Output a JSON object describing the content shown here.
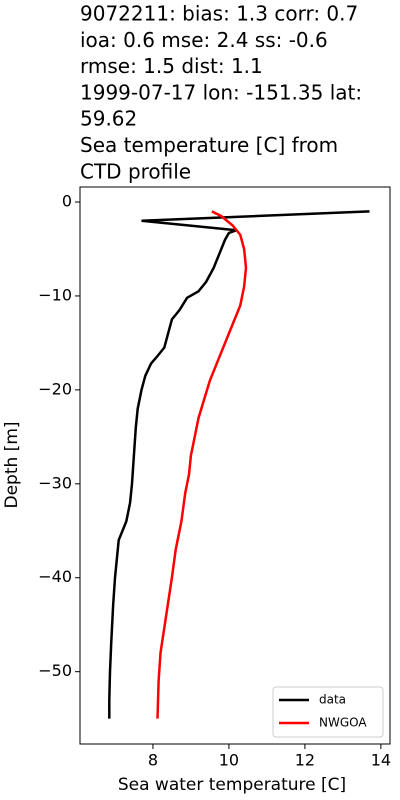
{
  "chart_data": {
    "type": "line",
    "title": [
      "9072211: bias: 1.3  corr: 0.7",
      " ioa: 0.6  mse: 2.4  ss: -0.6",
      "rmse: 1.5  dist: 1.1",
      "1999-07-17 lon: -151.35 lat:",
      "59.62",
      "Sea temperature [C] from",
      "CTD profile"
    ],
    "xlabel": "Sea water temperature [C]",
    "ylabel": "Depth [m]",
    "xlim": [
      6.08,
      14.24
    ],
    "ylim": [
      -57.7,
      1.6
    ],
    "xticks": [
      8,
      10,
      12,
      14
    ],
    "yticks": [
      {
        "value": 0,
        "label": "0"
      },
      {
        "value": -10,
        "label": "−10"
      },
      {
        "value": -20,
        "label": "−20"
      },
      {
        "value": -30,
        "label": "−30"
      },
      {
        "value": -40,
        "label": "−40"
      },
      {
        "value": -50,
        "label": "−50"
      }
    ],
    "legend": "lower right",
    "series": [
      {
        "name": "data",
        "color": "#000000",
        "x": [
          13.7,
          7.7,
          10.2,
          10.0,
          9.9,
          9.8,
          9.7,
          9.6,
          9.4,
          9.2,
          8.9,
          8.7,
          8.5,
          8.4,
          8.3,
          8.1,
          7.95,
          7.8,
          7.7,
          7.6,
          7.55,
          7.5,
          7.45,
          7.4,
          7.3,
          7.1,
          7.0,
          6.95,
          6.9,
          6.87,
          6.85,
          6.85
        ],
        "values": [
          -1,
          -2,
          -3,
          -3.3,
          -4,
          -5,
          -6,
          -7,
          -8.5,
          -9.5,
          -10.2,
          -11.5,
          -12.5,
          -14,
          -15.5,
          -16.5,
          -17.2,
          -18.5,
          -20,
          -22,
          -24,
          -27,
          -30,
          -32,
          -34,
          -36,
          -40,
          -43,
          -47,
          -50,
          -53,
          -55
        ]
      },
      {
        "name": "NWGOA",
        "color": "#ff0000",
        "x": [
          9.55,
          9.8,
          10.1,
          10.3,
          10.4,
          10.45,
          10.4,
          10.3,
          10.1,
          9.9,
          9.7,
          9.5,
          9.35,
          9.2,
          9.1,
          9.0,
          8.95,
          8.85,
          8.75,
          8.6,
          8.5,
          8.35,
          8.2,
          8.15,
          8.12
        ],
        "values": [
          -1,
          -1.5,
          -2.5,
          -3.5,
          -5,
          -7,
          -9,
          -11,
          -13,
          -15,
          -17,
          -19,
          -21,
          -23,
          -25,
          -27,
          -29,
          -31,
          -34,
          -37,
          -40,
          -44,
          -48,
          -51,
          -55
        ]
      }
    ]
  }
}
